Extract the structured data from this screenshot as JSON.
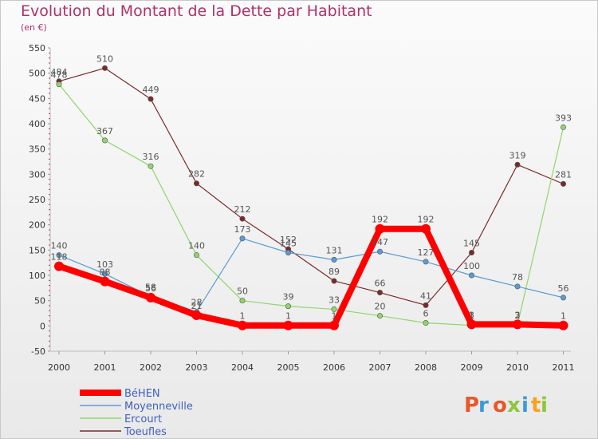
{
  "title": "Evolution du Montant de la Dette par Habitant",
  "subtitle": "(en €)",
  "brand": {
    "text": "Proxiti",
    "colors": [
      "#e8572a",
      "#3a9bd5",
      "#e8572a",
      "#8dc63f",
      "#3a9bd5",
      "#f7a21b",
      "#8dc63f"
    ]
  },
  "chart_data": {
    "type": "line",
    "title": "Evolution du Montant de la Dette par Habitant",
    "subtitle": "(en €)",
    "xlabel": "",
    "ylabel": "",
    "x": [
      "2000",
      "2001",
      "2002",
      "2003",
      "2004",
      "2005",
      "2006",
      "2007",
      "2008",
      "2009",
      "2010",
      "2011"
    ],
    "ylim": [
      -50,
      550
    ],
    "yticks": [
      "-50",
      "0",
      "50",
      "100",
      "150",
      "200",
      "250",
      "300",
      "350",
      "400",
      "450",
      "500",
      "550"
    ],
    "grid": false,
    "legend": "bottom-left",
    "series": [
      {
        "name": "Toeufles",
        "color": "#7a2a2a",
        "values": [
          484,
          510,
          449,
          282,
          212,
          152,
          89,
          66,
          41,
          145,
          319,
          281
        ],
        "labels": [
          "484",
          "510",
          "449",
          "282",
          "212",
          "152",
          "89",
          "66",
          "41",
          "145",
          "319",
          "281"
        ]
      },
      {
        "name": "Ercourt",
        "color": "#8fd66a",
        "values": [
          478,
          367,
          316,
          140,
          50,
          39,
          33,
          20,
          6,
          1,
          2,
          393
        ],
        "labels": [
          "478",
          "367",
          "316",
          "140",
          "50",
          "39",
          "33",
          "20",
          "6",
          "1",
          "2",
          "393"
        ]
      },
      {
        "name": "Moyenneville",
        "color": "#5b9bd5",
        "values": [
          140,
          103,
          58,
          28,
          173,
          145,
          131,
          147,
          127,
          100,
          78,
          56
        ],
        "labels": [
          "140",
          "103",
          "58",
          "28",
          "173",
          "145",
          "131",
          "147",
          "127",
          "100",
          "78",
          "56"
        ]
      },
      {
        "name": "BéHEN",
        "color": "#ff0000",
        "values": [
          118,
          88,
          56,
          21,
          1,
          1,
          1,
          192,
          192,
          3,
          3,
          1
        ],
        "labels": [
          "118",
          "88",
          "56",
          "21",
          "1",
          "1",
          "1",
          "192",
          "192",
          "3",
          "3",
          "1"
        ]
      }
    ],
    "legend_order": [
      "BéHEN",
      "Moyenneville",
      "Ercourt",
      "Toeufles"
    ]
  }
}
